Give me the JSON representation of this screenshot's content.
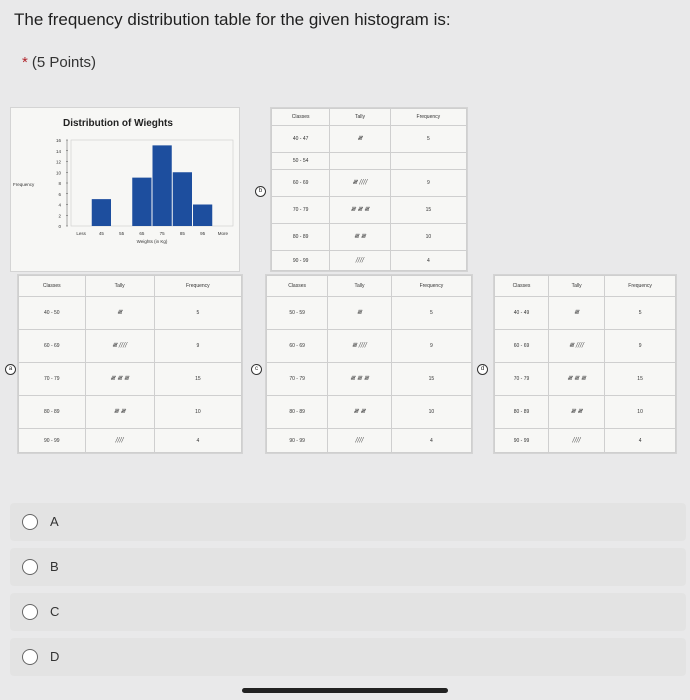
{
  "question": {
    "text": "The frequency distribution table for the given histogram is:",
    "required_mark": "*",
    "points": "(5 Points)"
  },
  "histogram": {
    "title": "Distribution of Wieghts",
    "ylabel": "Frequency",
    "xlabel": "Weights (in Kg)",
    "y_ticks": [
      "0",
      "2",
      "4",
      "6",
      "8",
      "10",
      "12",
      "14",
      "16"
    ],
    "x_ticks": [
      "Less",
      "45",
      "55",
      "65",
      "75",
      "85",
      "95",
      "More"
    ]
  },
  "chart_data": {
    "type": "bar",
    "title": "Distribution of Wieghts",
    "xlabel": "Weights (in Kg)",
    "ylabel": "Frequency",
    "categories": [
      "Less",
      "45",
      "55",
      "65",
      "75",
      "85",
      "95",
      "More"
    ],
    "values": [
      0,
      5,
      0,
      9,
      15,
      10,
      4,
      0
    ],
    "ylim": [
      0,
      16
    ]
  },
  "tables": {
    "headers": [
      "Classes",
      "Tally",
      "Frequency"
    ],
    "option_a": {
      "badge": "a",
      "rows": [
        [
          "40 - 50",
          "𝍸",
          "5"
        ],
        [
          "60 - 69",
          "𝍸 ////",
          "9"
        ],
        [
          "70 - 79",
          "𝍸 𝍸 𝍸",
          "15"
        ],
        [
          "80 - 89",
          "𝍸 𝍸",
          "10"
        ],
        [
          "90 - 99",
          "////",
          "4"
        ]
      ]
    },
    "option_b": {
      "badge": "b",
      "rows": [
        [
          "40 - 47",
          "𝍸",
          "5"
        ],
        [
          "50 - 54",
          "",
          ""
        ],
        [
          "60 - 69",
          "𝍸 ////",
          "9"
        ],
        [
          "70 - 79",
          "𝍸 𝍸 𝍸",
          "15"
        ],
        [
          "80 - 89",
          "𝍸 𝍸",
          "10"
        ],
        [
          "90 - 99",
          "////",
          "4"
        ]
      ]
    },
    "option_c": {
      "badge": "c",
      "rows": [
        [
          "50 - 59",
          "𝍸",
          "5"
        ],
        [
          "60 - 69",
          "𝍸 ////",
          "9"
        ],
        [
          "70 - 79",
          "𝍸 𝍸 𝍸",
          "15"
        ],
        [
          "80 - 89",
          "𝍸 𝍸",
          "10"
        ],
        [
          "90 - 99",
          "////",
          "4"
        ]
      ]
    },
    "option_d": {
      "badge": "d",
      "rows": [
        [
          "40 - 49",
          "𝍸",
          "5"
        ],
        [
          "60 - 69",
          "𝍸 ////",
          "9"
        ],
        [
          "70 - 79",
          "𝍸 𝍸 𝍸",
          "15"
        ],
        [
          "80 - 89",
          "𝍸 𝍸",
          "10"
        ],
        [
          "90 - 99",
          "////",
          "4"
        ]
      ]
    }
  },
  "choices": [
    {
      "label": "A"
    },
    {
      "label": "B"
    },
    {
      "label": "C"
    },
    {
      "label": "D"
    }
  ]
}
